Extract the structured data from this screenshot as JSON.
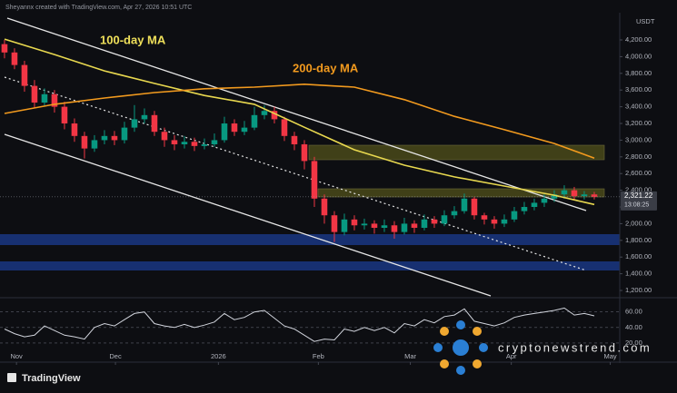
{
  "chart_data": {
    "type": "candlestick",
    "attribution": "Sheyannx created with TradingView.com, Apr 27, 2026 10:51 UTC",
    "currency": "USDT",
    "brand": "TradingView",
    "watermark": "cryptonewstrend.com",
    "annotations": [
      "100-day MA",
      "200-day MA"
    ],
    "last_price": {
      "value": 2321.22,
      "label": "2,321.22"
    },
    "countdown": "13:08:25",
    "up_color": "#089981",
    "down_color": "#f23645",
    "xlim": [
      -0.45,
      61.55
    ],
    "xticks": [
      {
        "value": 1.2,
        "label": "Nov"
      },
      {
        "value": 11.1,
        "label": "Dec"
      },
      {
        "value": 21.4,
        "label": "2026"
      },
      {
        "value": 31.4,
        "label": "Feb"
      },
      {
        "value": 40.6,
        "label": "Mar"
      },
      {
        "value": 50.7,
        "label": "Apr"
      },
      {
        "value": 60.6,
        "label": "May"
      }
    ],
    "ylim": [
      1135,
      4461
    ],
    "yticks": [
      {
        "value": 1200,
        "label": "1,200.00"
      },
      {
        "value": 1400,
        "label": "1,400.00"
      },
      {
        "value": 1600,
        "label": "1,600.00"
      },
      {
        "value": 1800,
        "label": "1,800.00"
      },
      {
        "value": 2000,
        "label": "2,000.00"
      },
      {
        "value": 2200,
        "label": "2,200.00"
      },
      {
        "value": 2400,
        "label": "2,400.00"
      },
      {
        "value": 2600,
        "label": "2,600.00"
      },
      {
        "value": 2800,
        "label": "2,800.00"
      },
      {
        "value": 3000,
        "label": "3,000.00"
      },
      {
        "value": 3200,
        "label": "3,200.00"
      },
      {
        "value": 3400,
        "label": "3,400.00"
      },
      {
        "value": 3600,
        "label": "3,600.00"
      },
      {
        "value": 3800,
        "label": "3,800.00"
      },
      {
        "value": 4000,
        "label": "4,000.00"
      },
      {
        "value": 4200,
        "label": "4,200.00"
      }
    ],
    "open": [
      4150,
      4050,
      3900,
      3650,
      3450,
      3550,
      3400,
      3200,
      3050,
      2900,
      3000,
      3050,
      3000,
      3150,
      3250,
      3300,
      3100,
      3000,
      2950,
      2980,
      2930,
      2950,
      3000,
      3200,
      3100,
      3150,
      3300,
      3350,
      3250,
      3050,
      2950,
      2750,
      2300,
      2100,
      1900,
      2050,
      1980,
      2000,
      1950,
      1980,
      1900,
      2000,
      1950,
      2050,
      2000,
      2100,
      2150,
      2300,
      2100,
      2050,
      2000,
      2050,
      2150,
      2200,
      2250,
      2300,
      2350,
      2400,
      2330,
      2350
    ],
    "high": [
      4200,
      4100,
      3950,
      3720,
      3620,
      3600,
      3460,
      3260,
      3100,
      3060,
      3120,
      3110,
      3220,
      3420,
      3380,
      3350,
      3150,
      3060,
      3050,
      3030,
      3020,
      3080,
      3280,
      3250,
      3230,
      3400,
      3420,
      3400,
      3280,
      3100,
      3000,
      2800,
      2350,
      2150,
      2120,
      2100,
      2060,
      2040,
      2050,
      2030,
      2070,
      2040,
      2110,
      2090,
      2160,
      2210,
      2360,
      2320,
      2130,
      2090,
      2110,
      2200,
      2260,
      2300,
      2350,
      2400,
      2460,
      2440,
      2390,
      2380
    ],
    "low": [
      3980,
      3850,
      3580,
      3380,
      3400,
      3330,
      3130,
      2980,
      2780,
      2860,
      2950,
      2940,
      2960,
      3100,
      3200,
      3050,
      2920,
      2880,
      2900,
      2870,
      2890,
      2920,
      2970,
      3050,
      3060,
      3120,
      3250,
      3200,
      2990,
      2880,
      2650,
      2200,
      2000,
      1780,
      1860,
      1920,
      1930,
      1880,
      1900,
      1820,
      1870,
      1890,
      1920,
      1950,
      1970,
      2060,
      2120,
      2050,
      1990,
      1940,
      1960,
      2020,
      2110,
      2160,
      2200,
      2260,
      2300,
      2280,
      2290,
      2290
    ],
    "close": [
      4050,
      3900,
      3650,
      3450,
      3550,
      3400,
      3200,
      3050,
      2900,
      3000,
      3050,
      3000,
      3150,
      3250,
      3300,
      3100,
      3000,
      2950,
      2980,
      2930,
      2950,
      3000,
      3200,
      3100,
      3150,
      3300,
      3350,
      3250,
      3050,
      2950,
      2750,
      2300,
      2100,
      1900,
      2050,
      1980,
      2000,
      1950,
      1980,
      1900,
      2000,
      1950,
      2050,
      2000,
      2100,
      2150,
      2300,
      2100,
      2050,
      2000,
      2050,
      2150,
      2200,
      2250,
      2300,
      2350,
      2400,
      2330,
      2350,
      2321.22
    ],
    "series": [
      {
        "name": "100-day MA",
        "color": "#e8d84f",
        "x": [
          0,
          5,
          10,
          15,
          20,
          25,
          30,
          35,
          40,
          45,
          50,
          55,
          59
        ],
        "values": [
          4210,
          4025,
          3830,
          3680,
          3535,
          3430,
          3155,
          2885,
          2700,
          2560,
          2450,
          2340,
          2230
        ]
      },
      {
        "name": "200-day MA",
        "color": "#f29a1e",
        "x": [
          0,
          5,
          10,
          15,
          20,
          25,
          30,
          35,
          40,
          45,
          50,
          55,
          59
        ],
        "values": [
          3320,
          3430,
          3505,
          3570,
          3615,
          3635,
          3670,
          3635,
          3485,
          3285,
          3125,
          2960,
          2785
        ]
      }
    ],
    "rsi": {
      "color": "#d1d4dc",
      "ylim": [
        0,
        76
      ],
      "yticks": [
        {
          "value": 20,
          "label": "20.00"
        },
        {
          "value": 40,
          "label": "40.00"
        },
        {
          "value": 60,
          "label": "60.00"
        }
      ],
      "values": [
        38,
        32,
        28,
        30,
        42,
        36,
        30,
        28,
        25,
        40,
        45,
        42,
        50,
        58,
        60,
        45,
        42,
        40,
        44,
        40,
        43,
        47,
        58,
        50,
        53,
        60,
        62,
        52,
        42,
        38,
        30,
        22,
        25,
        24,
        38,
        35,
        40,
        36,
        40,
        33,
        45,
        42,
        50,
        46,
        54,
        56,
        64,
        48,
        45,
        42,
        46,
        53,
        56,
        58,
        60,
        62,
        65,
        56,
        58,
        55
      ]
    }
  }
}
